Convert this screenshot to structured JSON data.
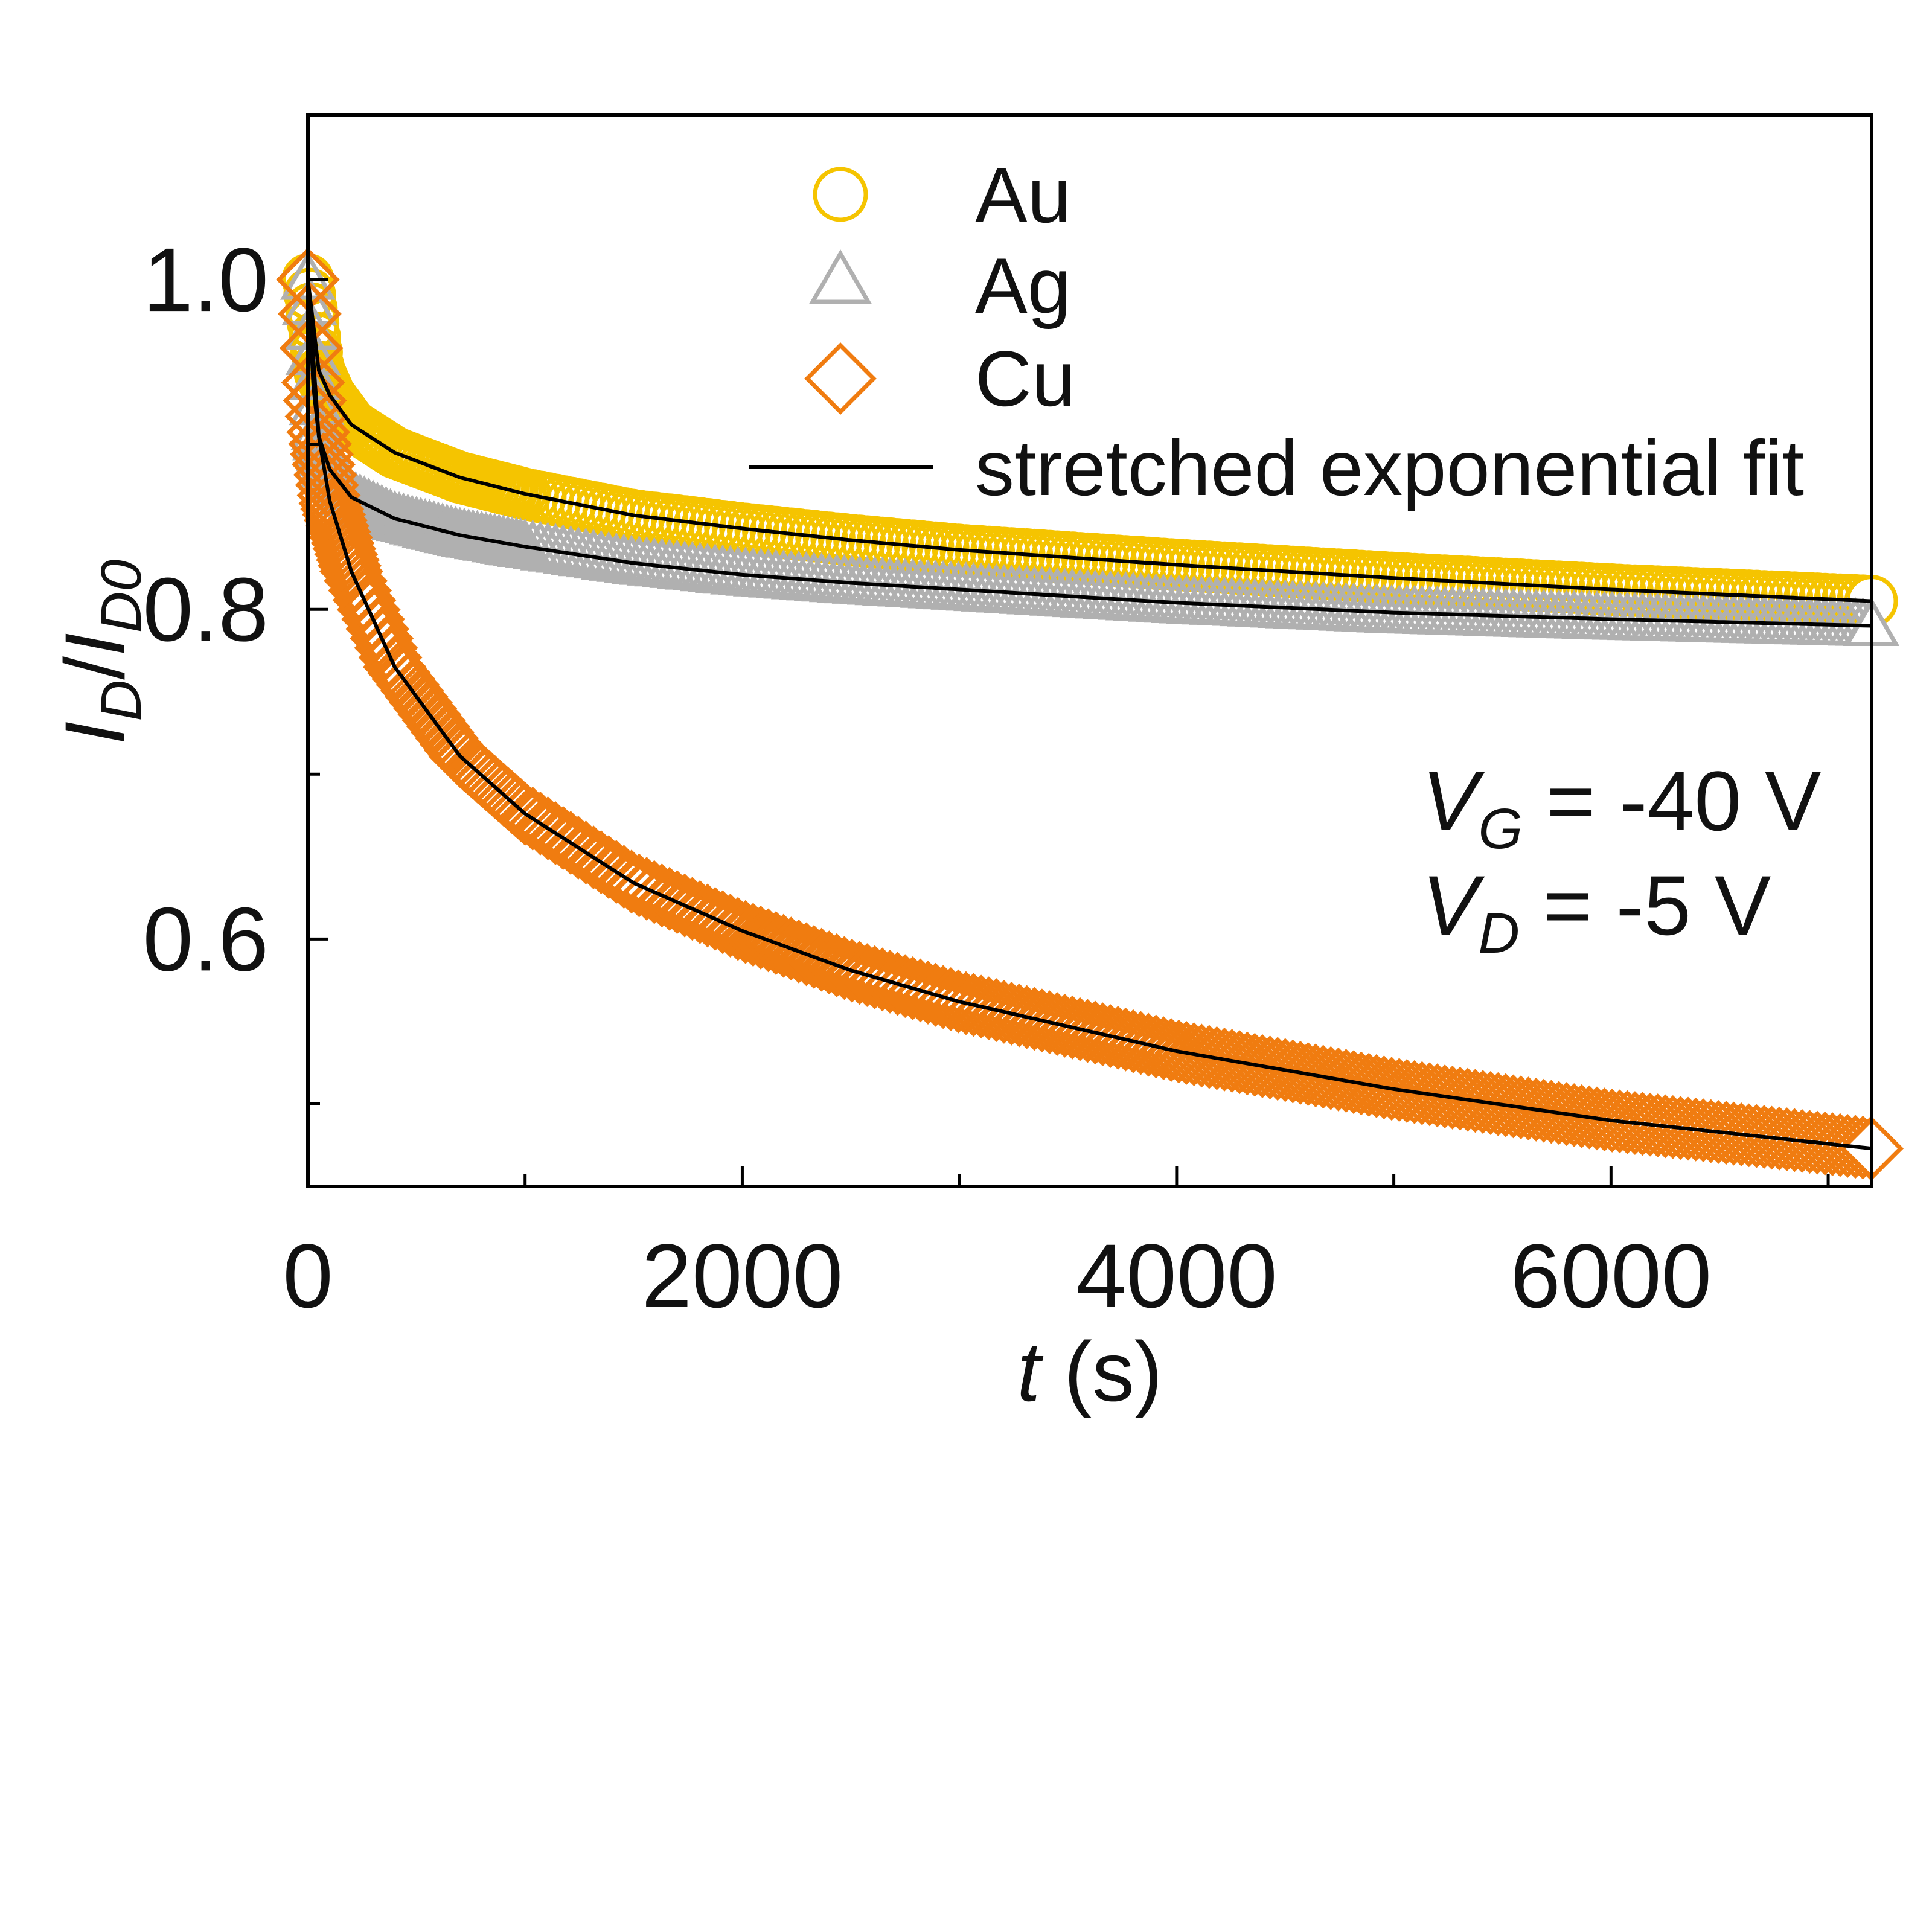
{
  "chart_data": {
    "type": "scatter",
    "title": "",
    "xlabel": {
      "var": "t",
      "unit": " (s)"
    },
    "ylabel": {
      "num": "I",
      "num_sub": "D",
      "den": "I",
      "den_sub": "D0"
    },
    "xlim": [
      0,
      7200
    ],
    "ylim": [
      0.45,
      1.1
    ],
    "xticks": [
      0,
      2000,
      4000,
      6000
    ],
    "xtick_labels": [
      "0",
      "2000",
      "4000",
      "6000"
    ],
    "xminor": [
      1000,
      3000,
      5000,
      7000
    ],
    "yticks": [
      0.6,
      0.8,
      1.0
    ],
    "ytick_labels": [
      "0.6",
      "0.8",
      "1.0"
    ],
    "yminor": [
      0.5,
      0.7,
      0.9
    ],
    "grid": false,
    "legend_position": "top-right",
    "series": [
      {
        "name": "Au",
        "marker": "circle",
        "color": "#f5c400",
        "x": [
          0,
          50,
          100,
          200,
          400,
          700,
          1000,
          1500,
          2000,
          2500,
          3000,
          4000,
          5000,
          6000,
          7200
        ],
        "y": [
          1.0,
          0.945,
          0.93,
          0.912,
          0.895,
          0.88,
          0.87,
          0.857,
          0.849,
          0.842,
          0.836,
          0.827,
          0.819,
          0.812,
          0.805
        ]
      },
      {
        "name": "Ag",
        "marker": "triangle",
        "color": "#b0b0b0",
        "x": [
          0,
          50,
          100,
          200,
          400,
          700,
          1000,
          1500,
          2000,
          2500,
          3000,
          4000,
          5000,
          6000,
          7200
        ],
        "y": [
          1.0,
          0.905,
          0.885,
          0.868,
          0.855,
          0.845,
          0.838,
          0.828,
          0.821,
          0.816,
          0.812,
          0.804,
          0.798,
          0.794,
          0.79
        ]
      },
      {
        "name": "Cu",
        "marker": "diamond",
        "color": "#f07c10",
        "x": [
          0,
          25,
          50,
          100,
          200,
          400,
          700,
          1000,
          1500,
          2000,
          2500,
          3000,
          4000,
          5000,
          6000,
          7200
        ],
        "y": [
          1.0,
          0.935,
          0.905,
          0.866,
          0.823,
          0.765,
          0.711,
          0.676,
          0.634,
          0.605,
          0.581,
          0.562,
          0.532,
          0.509,
          0.49,
          0.473
        ]
      }
    ],
    "fit_label": "stretched exponential fit",
    "fit_color": "#000000",
    "annotations": [
      {
        "var": "V",
        "sub": "G",
        "text": " = -40 V"
      },
      {
        "var": "V",
        "sub": "D",
        "text": " = -5 V"
      }
    ]
  }
}
